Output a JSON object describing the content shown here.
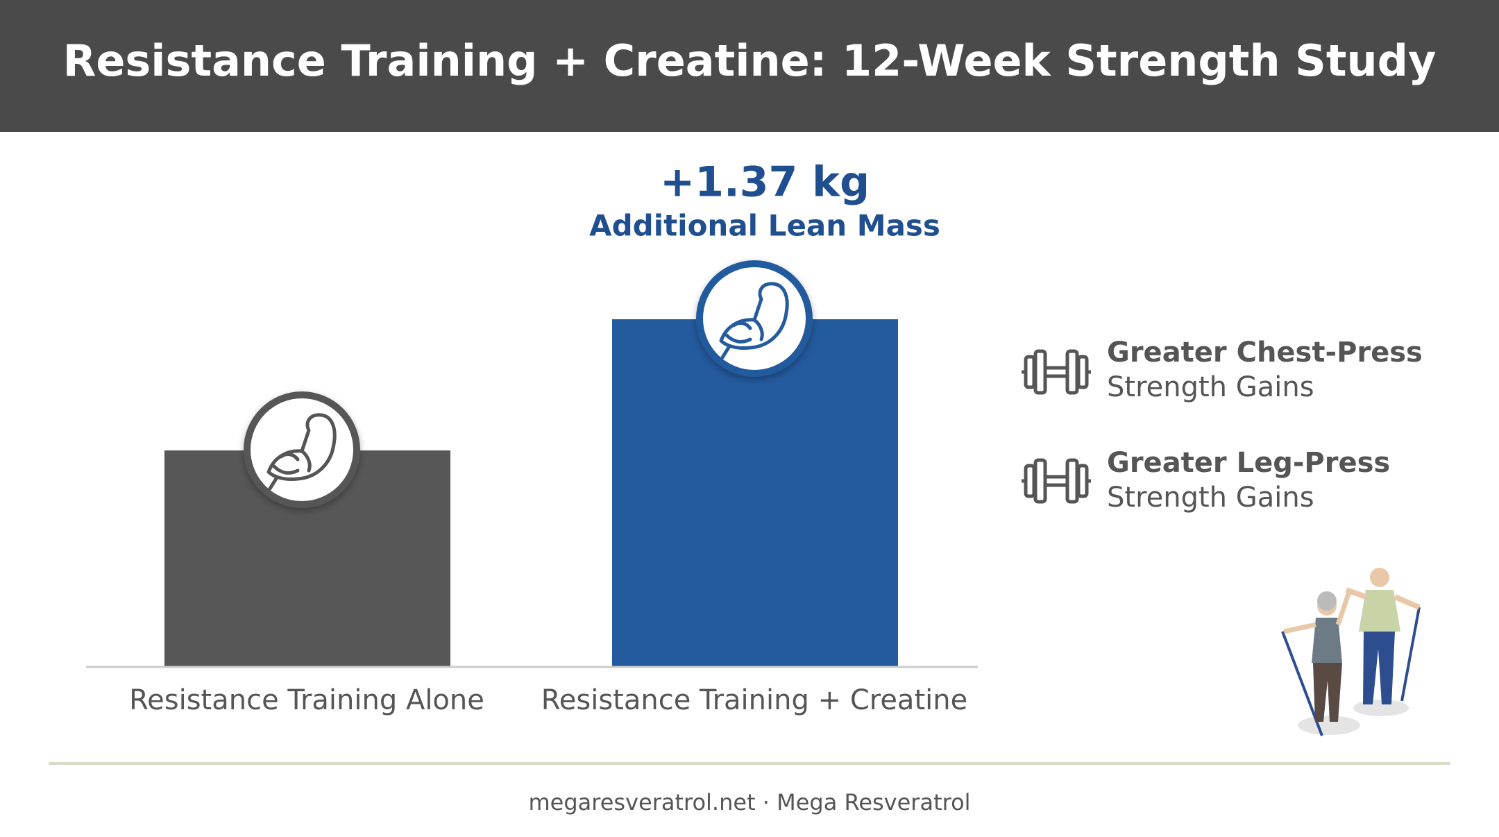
{
  "header": {
    "title": "Resistance Training + Creatine: 12-Week Strength Study"
  },
  "chart": {
    "annotation": {
      "value": "+1.37 kg",
      "label": "Additional Lean Mass"
    },
    "categories": [
      "Resistance Training Alone",
      "Resistance Training + Creatine"
    ]
  },
  "benefits": [
    {
      "title": "Greater Chest-Press",
      "subtitle": "Strength Gains"
    },
    {
      "title": "Greater Leg-Press",
      "subtitle": "Strength Gains"
    }
  ],
  "footer": {
    "text": "megaresveratrol.net · Mega Resveratrol"
  }
}
